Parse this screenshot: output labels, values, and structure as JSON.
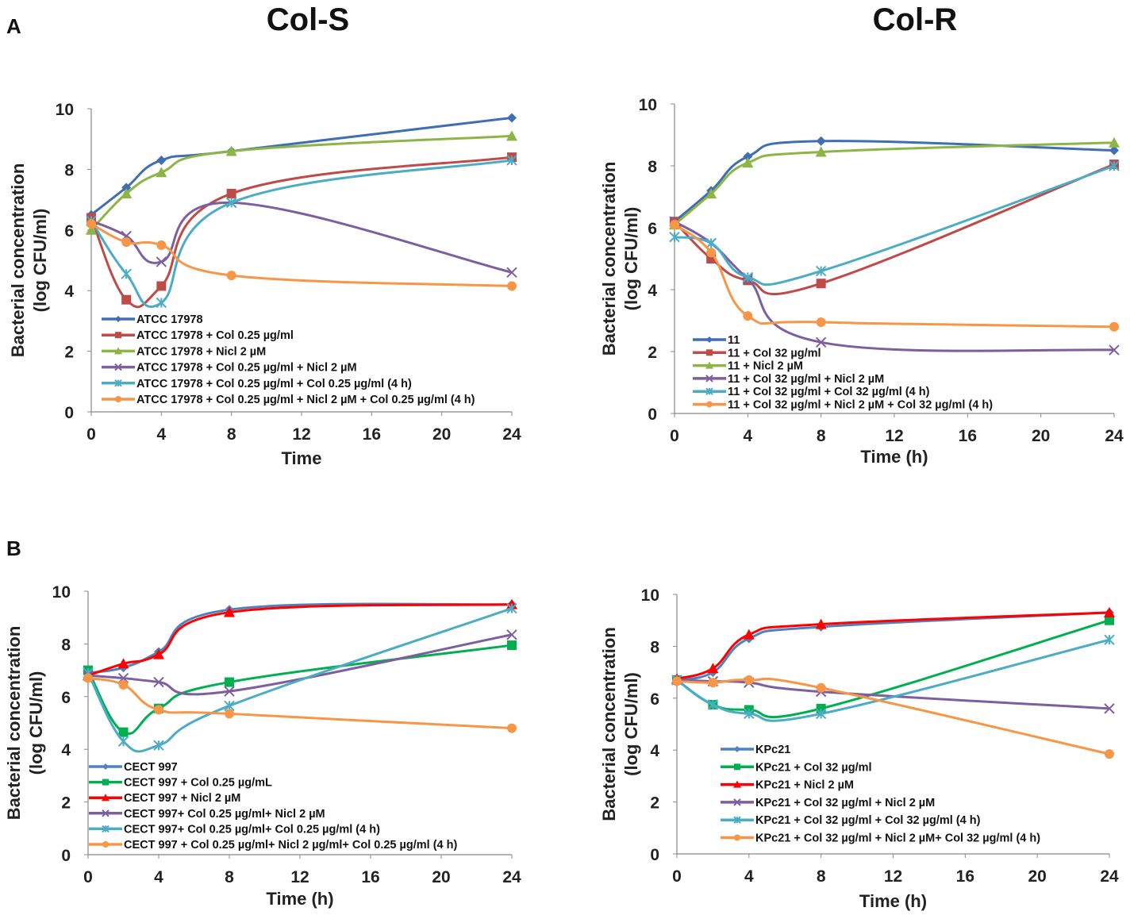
{
  "column_titles": [
    "Col-S",
    "Col-R"
  ],
  "panel_labels": [
    "A",
    "B"
  ],
  "chart_data": [
    {
      "type": "line",
      "panel": "A",
      "column": "Col-S",
      "xlabel": "Time",
      "ylabel": [
        "Bacterial concentration",
        "(log CFU/ml)"
      ],
      "xlim": [
        0,
        24
      ],
      "ylim": [
        0,
        10
      ],
      "xticks": [
        0,
        4,
        8,
        12,
        16,
        20,
        24
      ],
      "yticks": [
        0,
        2,
        4,
        6,
        8,
        10
      ],
      "grid": false,
      "legend": "bottom-left inside",
      "x": [
        0,
        2,
        4,
        8,
        24
      ],
      "series": [
        {
          "name": "ATCC 17978",
          "color": "#3F6EB5",
          "marker": "diamond",
          "values": [
            6.5,
            7.4,
            8.3,
            8.6,
            9.7
          ]
        },
        {
          "name": "ATCC 17978 + Col 0.25 µg/ml",
          "color": "#BE4B48",
          "marker": "square",
          "values": [
            6.4,
            3.7,
            4.15,
            7.2,
            8.4
          ]
        },
        {
          "name": "ATCC 17978 + Nicl 2 µM",
          "color": "#8DB545",
          "marker": "triangle",
          "values": [
            6.0,
            7.2,
            7.9,
            8.6,
            9.1
          ]
        },
        {
          "name": "ATCC 17978 + Col 0.25 µg/ml + Nicl 2 µM",
          "color": "#7D5FA0",
          "marker": "x",
          "values": [
            6.3,
            5.8,
            4.95,
            6.9,
            4.6
          ]
        },
        {
          "name": "ATCC 17978 + Col 0.25 µg/ml + Col 0.25 µg/ml (4 h)",
          "color": "#4AACC5",
          "marker": "asterisk",
          "values": [
            6.3,
            4.55,
            3.6,
            6.9,
            8.3
          ]
        },
        {
          "name": "ATCC 17978 + Col 0.25 µg/ml + Nicl 2 µM + Col 0.25 µg/ml (4 h)",
          "color": "#F79646",
          "marker": "circle",
          "values": [
            6.2,
            5.6,
            5.5,
            4.5,
            4.15
          ]
        }
      ]
    },
    {
      "type": "line",
      "panel": "A",
      "column": "Col-R",
      "xlabel": "Time (h)",
      "ylabel": [
        "Bacterial concentration",
        "(log CFU/ml)"
      ],
      "xlim": [
        0,
        24
      ],
      "ylim": [
        0,
        10
      ],
      "xticks": [
        0,
        4,
        8,
        12,
        16,
        20,
        24
      ],
      "yticks": [
        0,
        2,
        4,
        6,
        8,
        10
      ],
      "grid": false,
      "legend": "bottom-left inside",
      "x": [
        0,
        2,
        4,
        8,
        24
      ],
      "series": [
        {
          "name": "11",
          "color": "#3F6EB5",
          "marker": "diamond",
          "values": [
            6.2,
            7.2,
            8.3,
            8.8,
            8.5
          ]
        },
        {
          "name": "11 + Col 32 µg/ml",
          "color": "#BE4B48",
          "marker": "square",
          "values": [
            6.2,
            5.0,
            4.3,
            4.2,
            8.05
          ]
        },
        {
          "name": "11 + Nicl 2 µM",
          "color": "#8DB545",
          "marker": "triangle",
          "values": [
            6.1,
            7.1,
            8.1,
            8.45,
            8.75
          ]
        },
        {
          "name": "11 + Col 32 µg/ml + Nicl 2 µM",
          "color": "#7D5FA0",
          "marker": "x",
          "values": [
            6.2,
            5.5,
            4.35,
            2.3,
            2.05
          ]
        },
        {
          "name": "11 + Col 32 µg/ml + Col 32 µg/ml (4 h)",
          "color": "#4AACC5",
          "marker": "asterisk",
          "values": [
            5.7,
            5.5,
            4.4,
            4.6,
            8.0
          ]
        },
        {
          "name": "11 + Col 32 µg/ml + Nicl 2 µM + Col 32 µg/ml (4 h)",
          "color": "#F79646",
          "marker": "circle",
          "values": [
            6.1,
            5.2,
            3.15,
            2.95,
            2.8
          ]
        }
      ]
    },
    {
      "type": "line",
      "panel": "B",
      "column": "Col-S",
      "xlabel": "Time (h)",
      "ylabel": [
        "Bacterial concentration",
        "(log CFU/ml)"
      ],
      "xlim": [
        0,
        24
      ],
      "ylim": [
        0,
        10
      ],
      "xticks": [
        0,
        4,
        8,
        12,
        16,
        20,
        24
      ],
      "yticks": [
        0,
        2,
        4,
        6,
        8,
        10
      ],
      "grid": false,
      "legend": "bottom-left inside",
      "x": [
        0,
        2,
        4,
        8,
        24
      ],
      "series": [
        {
          "name": "CECT 997",
          "color": "#4F81BD",
          "marker": "diamond",
          "values": [
            6.9,
            7.1,
            7.7,
            9.3,
            9.5
          ]
        },
        {
          "name": "CECT 997 + Col 0.25 µg/mL",
          "color": "#00B050",
          "marker": "square",
          "values": [
            7.0,
            4.65,
            5.55,
            6.55,
            7.95
          ]
        },
        {
          "name": "CECT 997 + Nicl 2 µM",
          "color": "#FF0000",
          "marker": "triangle",
          "values": [
            6.8,
            7.25,
            7.6,
            9.2,
            9.5
          ]
        },
        {
          "name": "CECT 997+ Col 0.25 µg/ml+ Nicl 2 µM",
          "color": "#7D5FA0",
          "marker": "x",
          "values": [
            6.8,
            6.7,
            6.55,
            6.2,
            8.35
          ]
        },
        {
          "name": "CECT 997+ Col 0.25 µg/ml+ Col 0.25 µg/ml (4 h)",
          "color": "#4AACC5",
          "marker": "asterisk",
          "values": [
            6.9,
            4.3,
            4.15,
            5.65,
            9.35
          ]
        },
        {
          "name": "CECT 997 + Col 0.25 µg/ml+ Nicl 2 µg/ml+ Col 0.25 µg/ml (4 h)",
          "color": "#F79646",
          "marker": "circle",
          "values": [
            6.7,
            6.45,
            5.5,
            5.35,
            4.8
          ]
        }
      ]
    },
    {
      "type": "line",
      "panel": "B",
      "column": "Col-R",
      "xlabel": "Time (h)",
      "ylabel": [
        "Bacterial concentration",
        "(log CFU/ml)"
      ],
      "xlim": [
        0,
        24
      ],
      "ylim": [
        0,
        10
      ],
      "xticks": [
        0,
        4,
        8,
        12,
        16,
        20,
        24
      ],
      "yticks": [
        0,
        2,
        4,
        6,
        8,
        10
      ],
      "grid": false,
      "legend": "bottom-left inside",
      "x": [
        0,
        2,
        4,
        8,
        24
      ],
      "series": [
        {
          "name": "KPc21",
          "color": "#4F81BD",
          "marker": "diamond",
          "values": [
            6.7,
            7.0,
            8.3,
            8.75,
            9.3
          ]
        },
        {
          "name": "KPc21 + Col 32 µg/ml",
          "color": "#00B050",
          "marker": "square",
          "values": [
            6.7,
            5.75,
            5.55,
            5.6,
            9.0
          ]
        },
        {
          "name": "KPc21 + Nicl 2 µM",
          "color": "#FF0000",
          "marker": "triangle",
          "values": [
            6.75,
            7.15,
            8.45,
            8.85,
            9.3
          ]
        },
        {
          "name": "KPc21 + Col 32 µg/ml + Nicl 2 µM",
          "color": "#7D5FA0",
          "marker": "x",
          "values": [
            6.7,
            6.65,
            6.6,
            6.25,
            5.6
          ]
        },
        {
          "name": "KPc21 + Col 32 µg/ml + Col 32 µg/ml (4 h)",
          "color": "#4AACC5",
          "marker": "asterisk",
          "values": [
            6.7,
            5.75,
            5.4,
            5.4,
            8.25
          ]
        },
        {
          "name": "KPc21 + Col 32 µg/ml + Nicl 2 µM+ Col 32 µg/ml (4 h)",
          "color": "#F79646",
          "marker": "circle",
          "values": [
            6.65,
            6.6,
            6.7,
            6.4,
            3.85
          ]
        }
      ]
    }
  ]
}
